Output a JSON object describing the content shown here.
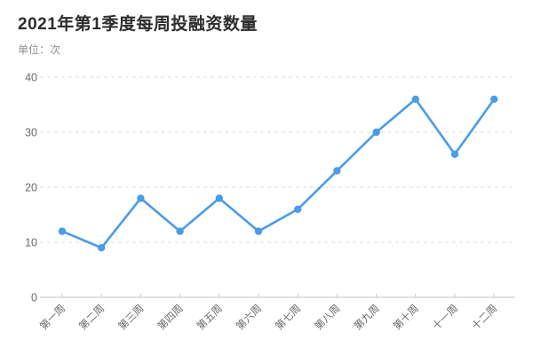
{
  "chart_data": {
    "type": "line",
    "title": "2021年第1季度每周投融资数量",
    "unit_label": "单位：次",
    "categories": [
      "第一周",
      "第二周",
      "第三周",
      "第四周",
      "第五周",
      "第六周",
      "第七周",
      "第八周",
      "第九周",
      "第十周",
      "十一周",
      "十二周"
    ],
    "values": [
      12,
      9,
      18,
      12,
      18,
      12,
      16,
      23,
      30,
      36,
      26,
      36
    ],
    "xlabel": "",
    "ylabel": "次",
    "ylim": [
      0,
      40
    ],
    "y_ticks": [
      0,
      10,
      20,
      30,
      40
    ],
    "grid": "horizontal-dashed",
    "legend": "none"
  },
  "colors": {
    "line": "#4a9ce8",
    "marker": "#4a9ce8",
    "gridline": "#dcdcdc",
    "axis": "#c6c6c6",
    "axis_label": "#6b6b6b",
    "title": "#2d2d2d",
    "subtitle": "#8f8f8f",
    "background": "#ffffff"
  }
}
